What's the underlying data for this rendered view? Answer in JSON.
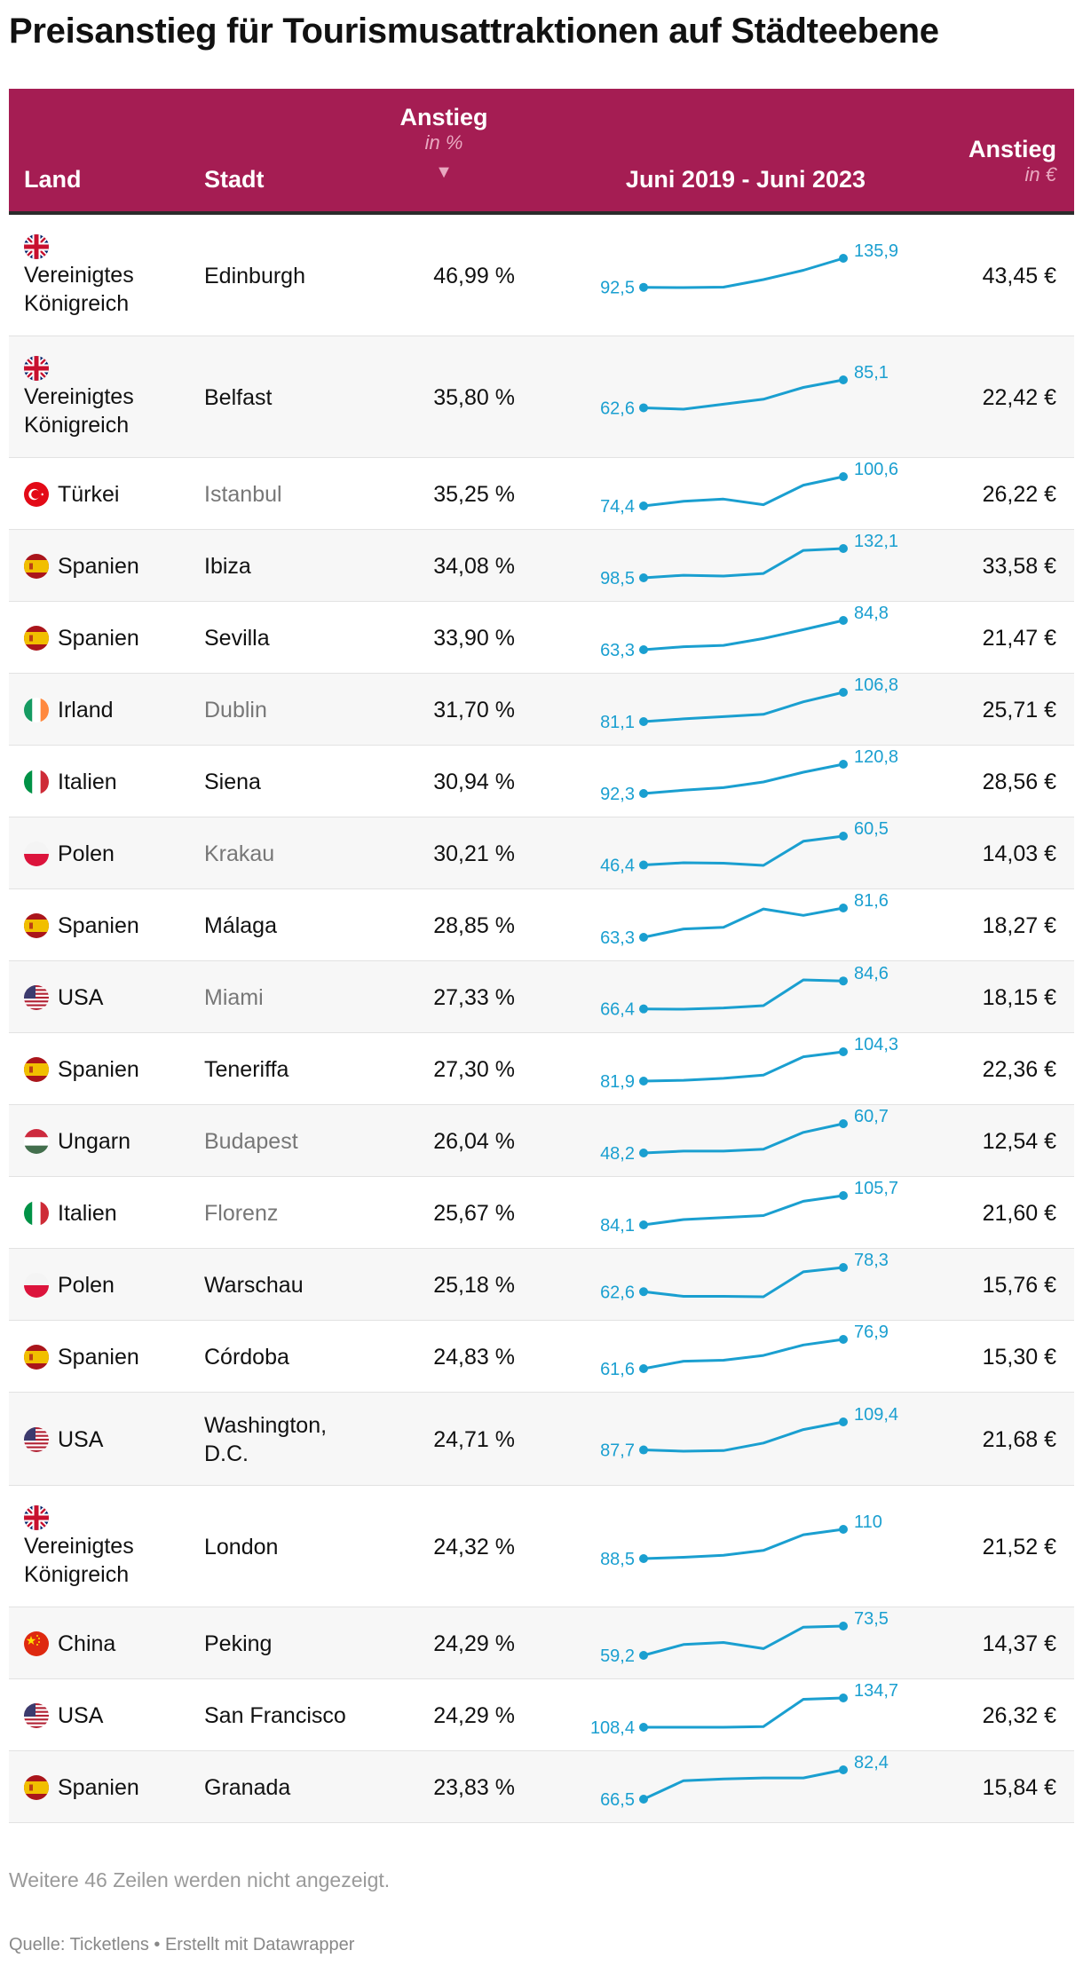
{
  "title": "Preisanstieg für Tourismusattraktionen auf Städteebene",
  "header": {
    "land": "Land",
    "stadt": "Stadt",
    "anstieg_pct": "Anstieg",
    "anstieg_pct_unit": "in %",
    "sort_arrow": "▼",
    "timeframe": "Juni 2019 - Juni 2023",
    "anstieg_eur": "Anstieg",
    "anstieg_eur_unit": "in €"
  },
  "colors": {
    "header_bg": "#a51d53",
    "sparkline": "#1a9fd0",
    "label": "#1a9fd0"
  },
  "chart_data": {
    "type": "table",
    "columns": [
      "Land",
      "Stadt",
      "Anstieg in %",
      "Juni 2019 - Juni 2023",
      "Anstieg in €"
    ],
    "rows": [
      {
        "land": "Vereinigtes Königreich",
        "flag": "uk",
        "stadt": "Edinburgh",
        "link": false,
        "pct": "46,99 %",
        "start": "92,5",
        "end": "135,9",
        "spark": [
          92.5,
          92.1,
          92.8,
          104,
          118,
          135.9
        ],
        "eur": "43,45 €"
      },
      {
        "land": "Vereinigtes Königreich",
        "flag": "uk",
        "stadt": "Belfast",
        "link": false,
        "pct": "35,80 %",
        "start": "62,6",
        "end": "85,1",
        "spark": [
          62.6,
          61.5,
          65.5,
          69.5,
          79,
          85.1
        ],
        "eur": "22,42 €"
      },
      {
        "land": "Türkei",
        "flag": "tr",
        "stadt": "Istanbul",
        "link": true,
        "pct": "35,25 %",
        "start": "74,4",
        "end": "100,6",
        "spark": [
          74.4,
          78.5,
          80.5,
          75.5,
          93,
          100.6
        ],
        "eur": "26,22 €"
      },
      {
        "land": "Spanien",
        "flag": "es",
        "stadt": "Ibiza",
        "link": false,
        "pct": "34,08 %",
        "start": "98,5",
        "end": "132,1",
        "spark": [
          98.5,
          101.5,
          100.5,
          103.5,
          130,
          132.1
        ],
        "eur": "33,58 €"
      },
      {
        "land": "Spanien",
        "flag": "es",
        "stadt": "Sevilla",
        "link": false,
        "pct": "33,90 %",
        "start": "63,3",
        "end": "84,8",
        "spark": [
          63.3,
          65.5,
          66.5,
          71.5,
          78,
          84.8
        ],
        "eur": "21,47 €"
      },
      {
        "land": "Irland",
        "flag": "ie",
        "stadt": "Dublin",
        "link": true,
        "pct": "31,70 %",
        "start": "81,1",
        "end": "106,8",
        "spark": [
          81.1,
          83.5,
          85.5,
          87.5,
          98.5,
          106.8
        ],
        "eur": "25,71 €"
      },
      {
        "land": "Italien",
        "flag": "it",
        "stadt": "Siena",
        "link": false,
        "pct": "30,94 %",
        "start": "92,3",
        "end": "120,8",
        "spark": [
          92.3,
          95.5,
          98,
          103.5,
          113,
          120.8
        ],
        "eur": "28,56 €"
      },
      {
        "land": "Polen",
        "flag": "pl",
        "stadt": "Krakau",
        "link": true,
        "pct": "30,21 %",
        "start": "46,4",
        "end": "60,5",
        "spark": [
          46.4,
          47.5,
          47.3,
          46.2,
          58,
          60.5
        ],
        "eur": "14,03 €"
      },
      {
        "land": "Spanien",
        "flag": "es",
        "stadt": "Málaga",
        "link": false,
        "pct": "28,85 %",
        "start": "63,3",
        "end": "81,6",
        "spark": [
          63.3,
          68.5,
          69.5,
          81,
          77,
          81.6
        ],
        "eur": "18,27 €"
      },
      {
        "land": "USA",
        "flag": "us",
        "stadt": "Miami",
        "link": true,
        "pct": "27,33 %",
        "start": "66,4",
        "end": "84,6",
        "spark": [
          66.4,
          66.2,
          67,
          68.5,
          85.3,
          84.6
        ],
        "eur": "18,15 €"
      },
      {
        "land": "Spanien",
        "flag": "es",
        "stadt": "Teneriffa",
        "link": false,
        "pct": "27,30 %",
        "start": "81,9",
        "end": "104,3",
        "spark": [
          81.9,
          82.5,
          84,
          86.5,
          100.5,
          104.3
        ],
        "eur": "22,36 €"
      },
      {
        "land": "Ungarn",
        "flag": "hu",
        "stadt": "Budapest",
        "link": true,
        "pct": "26,04 %",
        "start": "48,2",
        "end": "60,7",
        "spark": [
          48.2,
          49,
          49,
          49.8,
          57,
          60.7
        ],
        "eur": "12,54 €"
      },
      {
        "land": "Italien",
        "flag": "it",
        "stadt": "Florenz",
        "link": true,
        "pct": "25,67 %",
        "start": "84,1",
        "end": "105,7",
        "spark": [
          84.1,
          88,
          89.5,
          91,
          101.5,
          105.7
        ],
        "eur": "21,60 €"
      },
      {
        "land": "Polen",
        "flag": "pl",
        "stadt": "Warschau",
        "link": false,
        "pct": "25,18 %",
        "start": "62,6",
        "end": "78,3",
        "spark": [
          62.6,
          59.6,
          59.6,
          59.3,
          75.5,
          78.3
        ],
        "eur": "15,76 €"
      },
      {
        "land": "Spanien",
        "flag": "es",
        "stadt": "Córdoba",
        "link": false,
        "pct": "24,83 %",
        "start": "61,6",
        "end": "76,9",
        "spark": [
          61.6,
          65.5,
          66,
          68.5,
          74,
          76.9
        ],
        "eur": "15,30 €"
      },
      {
        "land": "USA",
        "flag": "us",
        "stadt": "Washington, D.C.",
        "link": false,
        "pct": "24,71 %",
        "start": "87,7",
        "end": "109,4",
        "spark": [
          87.7,
          86.7,
          87.2,
          93,
          103.5,
          109.4
        ],
        "eur": "21,68 €"
      },
      {
        "land": "Vereinigtes Königreich",
        "flag": "uk",
        "stadt": "London",
        "link": false,
        "pct": "24,32 %",
        "start": "88,5",
        "end": "110",
        "spark": [
          88.5,
          89.5,
          91,
          94.5,
          106,
          110
        ],
        "eur": "21,52 €"
      },
      {
        "land": "China",
        "flag": "cn",
        "stadt": "Peking",
        "link": false,
        "pct": "24,29 %",
        "start": "59,2",
        "end": "73,5",
        "spark": [
          59.2,
          64.5,
          65.5,
          62.5,
          73,
          73.5
        ],
        "eur": "14,37 €"
      },
      {
        "land": "USA",
        "flag": "us",
        "stadt": "San Francisco",
        "link": false,
        "pct": "24,29 %",
        "start": "108,4",
        "end": "134,7",
        "spark": [
          108.4,
          108.4,
          108.4,
          109,
          133.5,
          134.7
        ],
        "eur": "26,32 €"
      },
      {
        "land": "Spanien",
        "flag": "es",
        "stadt": "Granada",
        "link": false,
        "pct": "23,83 %",
        "start": "66,5",
        "end": "82,4",
        "spark": [
          66.5,
          76.5,
          77.5,
          78,
          78,
          82.4
        ],
        "eur": "15,84 €"
      }
    ]
  },
  "footer": {
    "more_rows": "Weitere 46 Zeilen werden nicht angezeigt.",
    "source": "Quelle: Ticketlens • Erstellt mit Datawrapper"
  }
}
